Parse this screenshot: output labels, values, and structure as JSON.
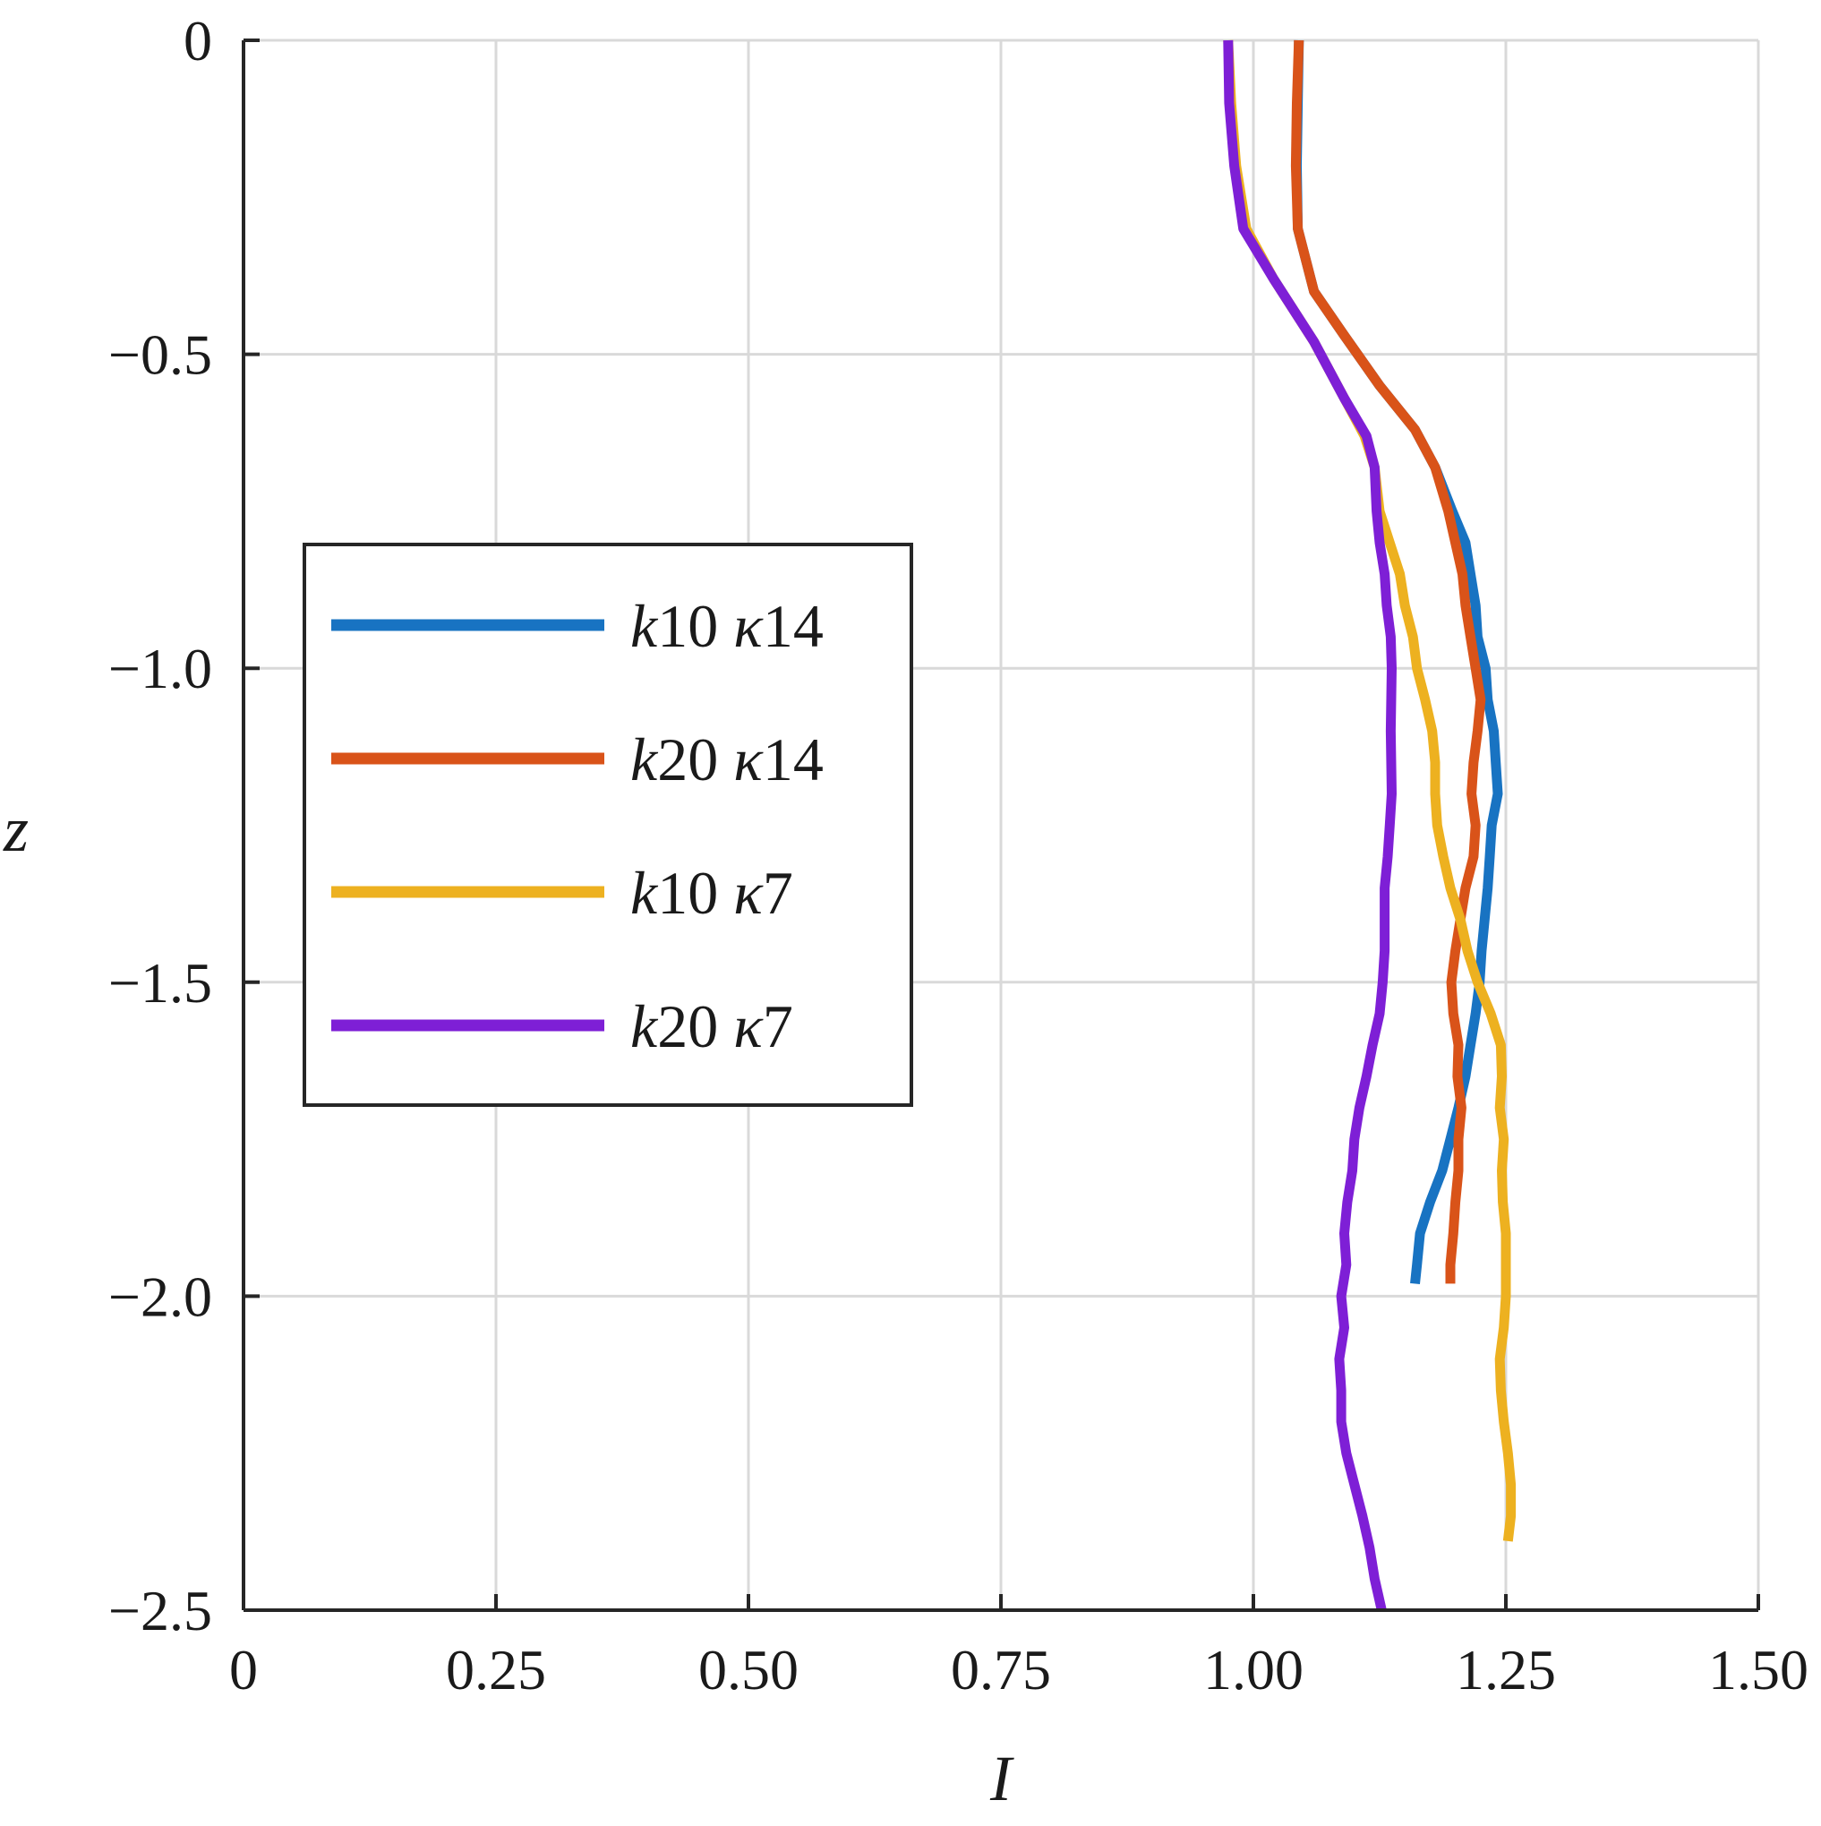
{
  "chart_data": {
    "type": "line",
    "xlabel": "I",
    "ylabel": "z",
    "xlim": [
      0,
      1.5
    ],
    "ylim": [
      -2.5,
      0
    ],
    "xticks": [
      0,
      0.25,
      0.5,
      0.75,
      1.0,
      1.25,
      1.5
    ],
    "xtick_labels": [
      "0",
      "0.25",
      "0.50",
      "0.75",
      "1.00",
      "1.25",
      "1.50"
    ],
    "yticks": [
      0,
      -0.5,
      -1.0,
      -1.5,
      -2.0,
      -2.5
    ],
    "ytick_labels": [
      "0",
      "−0.5",
      "−1.0",
      "−1.5",
      "−2.0",
      "−2.5"
    ],
    "grid": true,
    "legend_position": "left",
    "series": [
      {
        "name": "k10 κ14",
        "legend_parts": [
          [
            "k",
            true
          ],
          [
            "10 ",
            false
          ],
          [
            "κ",
            true
          ],
          [
            "14",
            false
          ]
        ],
        "color": "#1873c2",
        "points": [
          [
            1.045,
            0
          ],
          [
            1.044,
            -0.1
          ],
          [
            1.043,
            -0.2
          ],
          [
            1.044,
            -0.3
          ],
          [
            1.06,
            -0.4
          ],
          [
            1.09,
            -0.47
          ],
          [
            1.125,
            -0.55
          ],
          [
            1.16,
            -0.62
          ],
          [
            1.18,
            -0.68
          ],
          [
            1.197,
            -0.75
          ],
          [
            1.21,
            -0.8
          ],
          [
            1.215,
            -0.85
          ],
          [
            1.22,
            -0.9
          ],
          [
            1.222,
            -0.95
          ],
          [
            1.23,
            -1.0
          ],
          [
            1.232,
            -1.05
          ],
          [
            1.238,
            -1.1
          ],
          [
            1.24,
            -1.15
          ],
          [
            1.242,
            -1.2
          ],
          [
            1.236,
            -1.25
          ],
          [
            1.234,
            -1.3
          ],
          [
            1.232,
            -1.35
          ],
          [
            1.229,
            -1.4
          ],
          [
            1.226,
            -1.45
          ],
          [
            1.224,
            -1.5
          ],
          [
            1.22,
            -1.55
          ],
          [
            1.215,
            -1.6
          ],
          [
            1.21,
            -1.65
          ],
          [
            1.203,
            -1.7
          ],
          [
            1.195,
            -1.75
          ],
          [
            1.187,
            -1.8
          ],
          [
            1.175,
            -1.85
          ],
          [
            1.165,
            -1.9
          ],
          [
            1.162,
            -1.95
          ],
          [
            1.16,
            -1.98
          ]
        ]
      },
      {
        "name": "k20 κ14",
        "legend_parts": [
          [
            "k",
            true
          ],
          [
            "20 ",
            false
          ],
          [
            "κ",
            true
          ],
          [
            "14",
            false
          ]
        ],
        "color": "#d95319",
        "points": [
          [
            1.045,
            0
          ],
          [
            1.043,
            -0.1
          ],
          [
            1.042,
            -0.2
          ],
          [
            1.044,
            -0.3
          ],
          [
            1.06,
            -0.4
          ],
          [
            1.09,
            -0.47
          ],
          [
            1.125,
            -0.55
          ],
          [
            1.16,
            -0.62
          ],
          [
            1.18,
            -0.68
          ],
          [
            1.193,
            -0.75
          ],
          [
            1.2,
            -0.8
          ],
          [
            1.207,
            -0.85
          ],
          [
            1.21,
            -0.9
          ],
          [
            1.215,
            -0.95
          ],
          [
            1.22,
            -1.0
          ],
          [
            1.225,
            -1.05
          ],
          [
            1.222,
            -1.1
          ],
          [
            1.218,
            -1.15
          ],
          [
            1.216,
            -1.2
          ],
          [
            1.22,
            -1.25
          ],
          [
            1.218,
            -1.3
          ],
          [
            1.21,
            -1.35
          ],
          [
            1.205,
            -1.4
          ],
          [
            1.2,
            -1.45
          ],
          [
            1.196,
            -1.5
          ],
          [
            1.198,
            -1.55
          ],
          [
            1.203,
            -1.6
          ],
          [
            1.202,
            -1.65
          ],
          [
            1.206,
            -1.7
          ],
          [
            1.203,
            -1.75
          ],
          [
            1.203,
            -1.8
          ],
          [
            1.2,
            -1.85
          ],
          [
            1.198,
            -1.9
          ],
          [
            1.195,
            -1.95
          ],
          [
            1.195,
            -1.98
          ]
        ]
      },
      {
        "name": "k10 κ7",
        "legend_parts": [
          [
            "k",
            true
          ],
          [
            "10 ",
            false
          ],
          [
            "κ",
            true
          ],
          [
            "7",
            false
          ]
        ],
        "color": "#edb120",
        "points": [
          [
            0.975,
            0
          ],
          [
            0.978,
            -0.1
          ],
          [
            0.983,
            -0.2
          ],
          [
            0.993,
            -0.3
          ],
          [
            1.02,
            -0.38
          ],
          [
            1.06,
            -0.48
          ],
          [
            1.09,
            -0.57
          ],
          [
            1.11,
            -0.63
          ],
          [
            1.12,
            -0.68
          ],
          [
            1.125,
            -0.75
          ],
          [
            1.135,
            -0.8
          ],
          [
            1.145,
            -0.85
          ],
          [
            1.15,
            -0.9
          ],
          [
            1.158,
            -0.95
          ],
          [
            1.162,
            -1.0
          ],
          [
            1.17,
            -1.05
          ],
          [
            1.177,
            -1.1
          ],
          [
            1.18,
            -1.15
          ],
          [
            1.18,
            -1.2
          ],
          [
            1.182,
            -1.25
          ],
          [
            1.188,
            -1.3
          ],
          [
            1.195,
            -1.35
          ],
          [
            1.205,
            -1.4
          ],
          [
            1.212,
            -1.45
          ],
          [
            1.222,
            -1.5
          ],
          [
            1.235,
            -1.55
          ],
          [
            1.245,
            -1.6
          ],
          [
            1.246,
            -1.65
          ],
          [
            1.244,
            -1.7
          ],
          [
            1.248,
            -1.75
          ],
          [
            1.246,
            -1.8
          ],
          [
            1.247,
            -1.85
          ],
          [
            1.25,
            -1.9
          ],
          [
            1.25,
            -1.95
          ],
          [
            1.25,
            -2.0
          ],
          [
            1.248,
            -2.05
          ],
          [
            1.244,
            -2.1
          ],
          [
            1.245,
            -2.15
          ],
          [
            1.248,
            -2.2
          ],
          [
            1.252,
            -2.25
          ],
          [
            1.255,
            -2.3
          ],
          [
            1.255,
            -2.35
          ],
          [
            1.252,
            -2.39
          ]
        ]
      },
      {
        "name": "k20 κ7",
        "legend_parts": [
          [
            "k",
            true
          ],
          [
            "20 ",
            false
          ],
          [
            "κ",
            true
          ],
          [
            "7",
            false
          ]
        ],
        "color": "#7e1fd6",
        "points": [
          [
            0.975,
            0
          ],
          [
            0.976,
            -0.1
          ],
          [
            0.981,
            -0.2
          ],
          [
            0.99,
            -0.3
          ],
          [
            1.02,
            -0.38
          ],
          [
            1.06,
            -0.48
          ],
          [
            1.09,
            -0.57
          ],
          [
            1.112,
            -0.63
          ],
          [
            1.12,
            -0.68
          ],
          [
            1.122,
            -0.75
          ],
          [
            1.125,
            -0.8
          ],
          [
            1.13,
            -0.85
          ],
          [
            1.132,
            -0.9
          ],
          [
            1.136,
            -0.95
          ],
          [
            1.137,
            -1.0
          ],
          [
            1.136,
            -1.1
          ],
          [
            1.137,
            -1.2
          ],
          [
            1.135,
            -1.25
          ],
          [
            1.133,
            -1.3
          ],
          [
            1.13,
            -1.35
          ],
          [
            1.13,
            -1.4
          ],
          [
            1.13,
            -1.45
          ],
          [
            1.128,
            -1.5
          ],
          [
            1.125,
            -1.55
          ],
          [
            1.118,
            -1.6
          ],
          [
            1.112,
            -1.65
          ],
          [
            1.105,
            -1.7
          ],
          [
            1.1,
            -1.75
          ],
          [
            1.098,
            -1.8
          ],
          [
            1.093,
            -1.85
          ],
          [
            1.09,
            -1.9
          ],
          [
            1.092,
            -1.95
          ],
          [
            1.087,
            -2.0
          ],
          [
            1.09,
            -2.05
          ],
          [
            1.085,
            -2.1
          ],
          [
            1.087,
            -2.15
          ],
          [
            1.087,
            -2.2
          ],
          [
            1.092,
            -2.25
          ],
          [
            1.1,
            -2.3
          ],
          [
            1.108,
            -2.35
          ],
          [
            1.115,
            -2.4
          ],
          [
            1.12,
            -2.45
          ],
          [
            1.127,
            -2.5
          ]
        ]
      }
    ]
  }
}
